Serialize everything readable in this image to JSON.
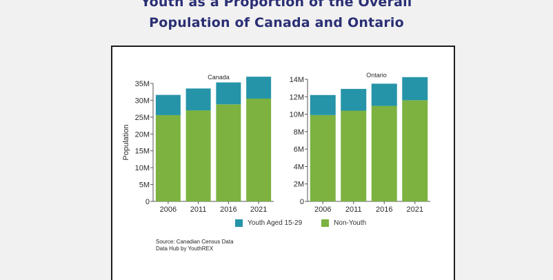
{
  "title": {
    "line1": "Youth as a Proportion of the Overall",
    "line2": "Population of Canada and Ontario"
  },
  "colors": {
    "youth": "#2594a8",
    "non_youth": "#7db240",
    "title": "#2a2f74"
  },
  "legend": {
    "youth": "Youth Aged 15-29",
    "non_youth": "Non-Youth"
  },
  "source": {
    "line1": "Source: Canadian Census Data",
    "line2": "Data Hub by YouthREX"
  },
  "chart_data": [
    {
      "type": "bar",
      "stacked": true,
      "title": "Canada",
      "xlabel": "",
      "ylabel": "Population",
      "categories": [
        "2006",
        "2011",
        "2016",
        "2021"
      ],
      "ylim": [
        0,
        35000000
      ],
      "yticks": [
        0,
        5000000,
        10000000,
        15000000,
        20000000,
        25000000,
        30000000,
        35000000
      ],
      "ytick_labels": [
        "0",
        "5M",
        "10M",
        "15M",
        "20M",
        "25M",
        "30M",
        "35M"
      ],
      "grid": false,
      "legend": "bottom",
      "series": [
        {
          "name": "Non-Youth",
          "values": [
            25600000,
            27000000,
            28800000,
            30500000
          ]
        },
        {
          "name": "Youth Aged 15-29",
          "values": [
            6000000,
            6500000,
            6500000,
            6500000
          ]
        }
      ]
    },
    {
      "type": "bar",
      "stacked": true,
      "title": "Ontario",
      "xlabel": "",
      "ylabel": "",
      "categories": [
        "2006",
        "2011",
        "2016",
        "2021"
      ],
      "ylim": [
        0,
        14000000
      ],
      "yticks": [
        0,
        2000000,
        4000000,
        6000000,
        8000000,
        10000000,
        12000000,
        14000000
      ],
      "ytick_labels": [
        "0",
        "2M",
        "4M",
        "6M",
        "8M",
        "10M",
        "12M",
        "14M"
      ],
      "grid": false,
      "legend": "bottom",
      "series": [
        {
          "name": "Non-Youth",
          "values": [
            9900000,
            10400000,
            10950000,
            11600000
          ]
        },
        {
          "name": "Youth Aged 15-29",
          "values": [
            2300000,
            2500000,
            2550000,
            2650000
          ]
        }
      ]
    }
  ]
}
